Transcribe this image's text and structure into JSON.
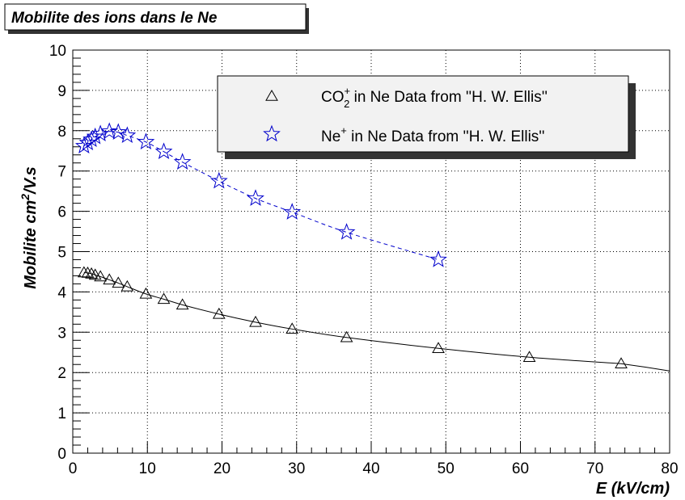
{
  "chart_data": {
    "type": "scatter",
    "title": "Mobilite des ions dans le Ne",
    "xlabel": "E (kV/cm)",
    "ylabel_main": "Mobilite cm",
    "ylabel_sup": "2",
    "ylabel_tail": "/V.s",
    "xlim": [
      0,
      80
    ],
    "ylim": [
      0,
      10
    ],
    "x_ticks": [
      "0",
      "10",
      "20",
      "30",
      "40",
      "50",
      "60",
      "70",
      "80"
    ],
    "y_ticks": [
      "0",
      "1",
      "2",
      "3",
      "4",
      "5",
      "6",
      "7",
      "8",
      "9",
      "10"
    ],
    "grid": true,
    "legend_position": "top-right",
    "series": [
      {
        "name": "CO2+ in Ne Data from ''H. W. Ellis''",
        "legend_parts": {
          "pre": "CO",
          "sub": "2",
          "sup": "+",
          "post": " in Ne Data from ''H. W. Ellis''"
        },
        "marker": "triangle-open",
        "color": "#000000",
        "fit_style": "solid",
        "x": [
          1.5,
          2.0,
          2.5,
          3.0,
          3.7,
          4.9,
          6.1,
          7.3,
          9.8,
          12.2,
          14.7,
          19.6,
          24.5,
          29.4,
          36.7,
          49.0,
          61.2,
          73.5
        ],
        "y": [
          4.48,
          4.47,
          4.45,
          4.42,
          4.38,
          4.3,
          4.22,
          4.13,
          3.95,
          3.82,
          3.68,
          3.45,
          3.25,
          3.08,
          2.87,
          2.6,
          2.38,
          2.22
        ]
      },
      {
        "name": "Ne+ in Ne Data from ''H. W. Ellis''",
        "legend_parts": {
          "pre": "Ne",
          "sub": "",
          "sup": "+",
          "post": " in Ne Data from ''H. W. Ellis''"
        },
        "marker": "star-open",
        "color": "#0000cc",
        "fit_style": "dashed",
        "x": [
          1.5,
          2.0,
          2.5,
          3.0,
          3.7,
          4.9,
          6.1,
          7.3,
          9.8,
          12.2,
          14.7,
          19.6,
          24.5,
          29.4,
          36.7,
          49.0
        ],
        "y": [
          7.62,
          7.7,
          7.78,
          7.85,
          7.92,
          7.98,
          7.96,
          7.88,
          7.72,
          7.48,
          7.22,
          6.75,
          6.32,
          5.98,
          5.48,
          4.8
        ]
      }
    ]
  }
}
